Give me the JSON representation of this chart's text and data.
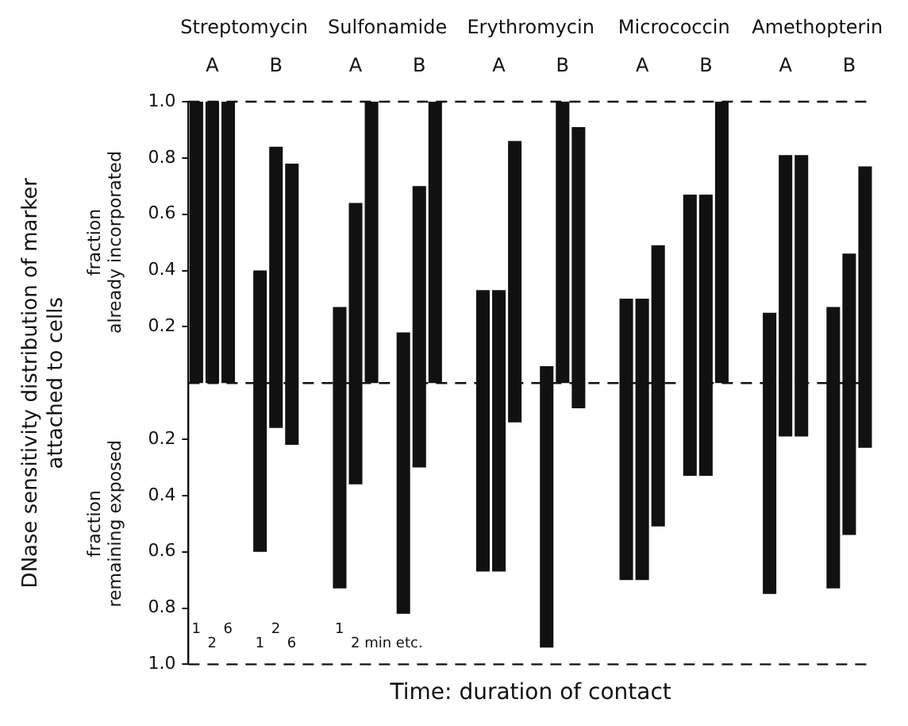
{
  "chart_data": {
    "type": "bar",
    "xlabel": "Time: duration of contact",
    "ylabel": "DNase sensitivity distribution of marker\nattached to cells",
    "categories": [
      null,
      null,
      null,
      null,
      null,
      null,
      null,
      null,
      null,
      null,
      null,
      null,
      null,
      null,
      null,
      null,
      null,
      null,
      null,
      null,
      null,
      null,
      null,
      null,
      null,
      null,
      null,
      null,
      null,
      null,
      null,
      null,
      null,
      null,
      null,
      null,
      null,
      null,
      null,
      null,
      null,
      null,
      null
    ],
    "series": [
      {
        "color": "#111111",
        "values": [
          1,
          1,
          1,
          null,
          1,
          1,
          1,
          null,
          null,
          1,
          1,
          1,
          null,
          1,
          1,
          1,
          null,
          null,
          1,
          1,
          1,
          null,
          1,
          1,
          1,
          null,
          null,
          1,
          1,
          1,
          null,
          1,
          1,
          1,
          null,
          null,
          1,
          1,
          1,
          null,
          1,
          1,
          1
        ],
        "base": [
          0,
          0,
          0,
          null,
          -0.6,
          -0.16,
          -0.22,
          null,
          null,
          -0.73,
          -0.36,
          0,
          null,
          -0.82,
          -0.3,
          0,
          null,
          null,
          -0.67,
          -0.67,
          -0.14,
          null,
          -0.94,
          0,
          -0.09,
          null,
          null,
          -0.7,
          -0.7,
          -0.51,
          null,
          -0.33,
          -0.33,
          0,
          null,
          null,
          -0.75,
          -0.19,
          -0.19,
          null,
          -0.73,
          -0.54,
          -0.23
        ]
      }
    ],
    "ylim": [
      -1,
      1
    ],
    "yticks": [
      {
        "value": -1,
        "label": "1.0"
      },
      {
        "value": -0.8,
        "label": "0.8"
      },
      {
        "value": -0.6,
        "label": "0.6"
      },
      {
        "value": -0.4,
        "label": "0.4"
      },
      {
        "value": -0.2,
        "label": "0.2"
      },
      0.2,
      0.4,
      0.6,
      0.8,
      {
        "value": 1,
        "label": "1.0"
      }
    ],
    "ref_lines": [
      {
        "axis": "y",
        "value": 1,
        "line_style": "dashed"
      },
      {
        "axis": "y",
        "value": 0,
        "line_style": "dashed"
      },
      {
        "axis": "y",
        "value": -1,
        "line_style": "dashed"
      }
    ],
    "annotations": [
      "Streptomycin",
      "Sulfonamide",
      "Erythromycin",
      "Micrococcin",
      "Amethopterin",
      "A",
      "B",
      "A",
      "B",
      "A",
      "B",
      "A",
      "B",
      "A",
      "B",
      "fraction\nalready incorporated",
      "fraction\nremaining exposed",
      "1",
      "2",
      "6",
      "1",
      "2",
      "6",
      "1",
      "2 min etc."
    ],
    "grid": false,
    "legend": false
  }
}
